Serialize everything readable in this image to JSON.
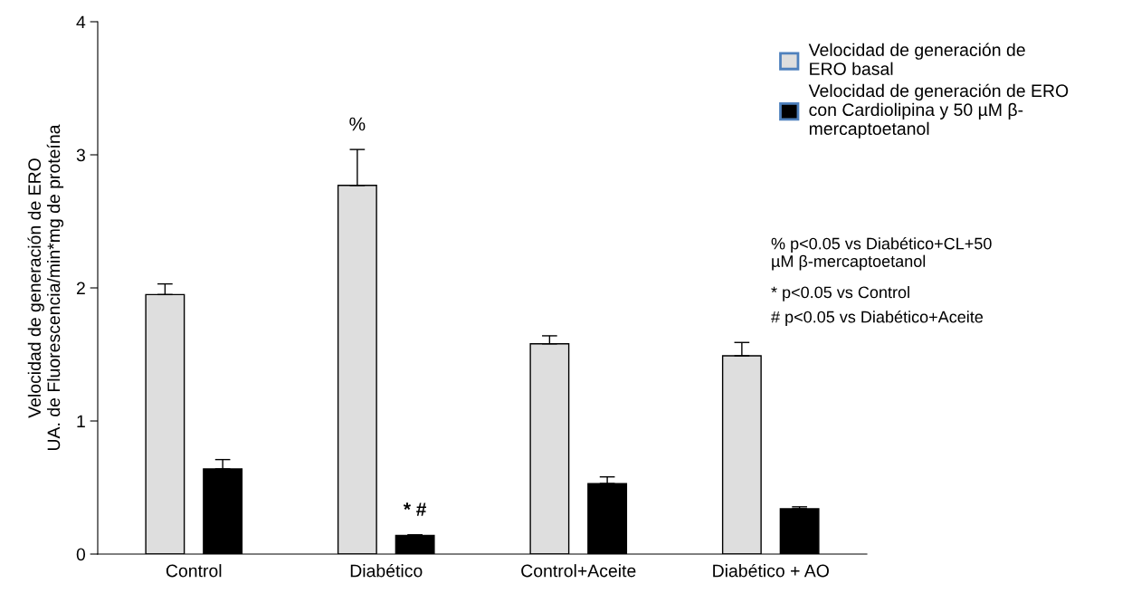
{
  "chart_data": {
    "type": "bar",
    "ylabel": "Velocidad de generación de ERO\nUA. de Fluorescencia/min*mg de proteína",
    "categories": [
      "Control",
      "Diabético",
      "Control+Aceite",
      "Diabético + AO"
    ],
    "series": [
      {
        "name": "Velocidad de generación de\nERO basal",
        "color": "#dedede",
        "values": [
          1.95,
          2.77,
          1.58,
          1.49
        ],
        "value_labels": [
          null,
          "%",
          null,
          null
        ],
        "errors": [
          0.08,
          0.27,
          0.06,
          0.1
        ]
      },
      {
        "name": "Velocidad de generación de ERO\ncon Cardiolipina y 50 µM β-\nmercaptoetanol",
        "color": "#000000",
        "values": [
          0.64,
          0.14,
          0.53,
          0.34
        ],
        "value_labels": [
          null,
          "* #",
          null,
          null
        ],
        "errors": [
          0.07,
          0.005,
          0.05,
          0.015
        ]
      }
    ],
    "ylim": [
      0,
      4
    ],
    "yticks": [
      0,
      1,
      2,
      3,
      4
    ],
    "grid": false,
    "legend": "top right",
    "annotations": [
      "% p<0.05 vs Diabético+CL+50\nµM β-mercaptoetanol",
      "* p<0.05 vs Control",
      "# p<0.05 vs Diabético+Aceite"
    ]
  }
}
